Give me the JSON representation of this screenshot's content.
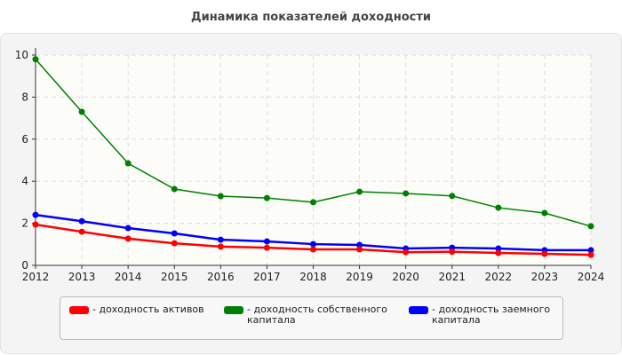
{
  "chart_data": {
    "type": "line",
    "title": "Динамика показателей доходности",
    "x": [
      "2012",
      "2013",
      "2014",
      "2015",
      "2016",
      "2017",
      "2018",
      "2019",
      "2020",
      "2021",
      "2022",
      "2023",
      "2024"
    ],
    "ylim": [
      0,
      10
    ],
    "yticks": [
      "0",
      "2",
      "4",
      "6",
      "8",
      "10"
    ],
    "grid": true,
    "legend_position": "bottom",
    "series": [
      {
        "name": "- доходность активов",
        "color": "#ff0000",
        "values": [
          1.94,
          1.6,
          1.27,
          1.05,
          0.89,
          0.84,
          0.76,
          0.76,
          0.63,
          0.65,
          0.59,
          0.55,
          0.5
        ]
      },
      {
        "name": "- доходность собственного капитала",
        "color": "#008000",
        "values": [
          9.8,
          7.3,
          4.85,
          3.63,
          3.29,
          3.2,
          3.0,
          3.5,
          3.42,
          3.3,
          2.74,
          2.49,
          1.86
        ]
      },
      {
        "name": "- доходность заемного капитала",
        "color": "#0000ff",
        "values": [
          2.4,
          2.1,
          1.77,
          1.52,
          1.22,
          1.14,
          1.01,
          0.97,
          0.8,
          0.84,
          0.8,
          0.72,
          0.72
        ]
      }
    ]
  }
}
